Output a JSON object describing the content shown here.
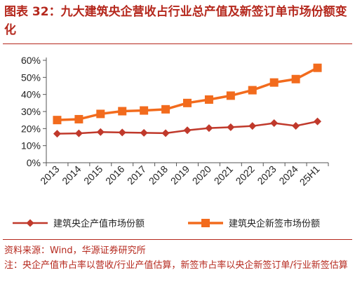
{
  "title": "图表 32：九大建筑央企营收占行业总产值及新签订单市场份额变化",
  "source": "资料来源：Wind，华源证券研究所",
  "note": "注：央企产值市占率以营收/行业产值估算，新签市占率以央企新签订单/行业新签估算",
  "chart_data": {
    "type": "line",
    "categories": [
      "2013",
      "2014",
      "2015",
      "2016",
      "2017",
      "2018",
      "2019",
      "2020",
      "2021",
      "2022",
      "2023",
      "2024",
      "25H1"
    ],
    "series": [
      {
        "name": "建筑央企产值市场份额",
        "color": "#c0392b",
        "marker": "diamond",
        "values": [
          17.0,
          17.2,
          18.0,
          17.7,
          17.5,
          17.3,
          19.0,
          20.3,
          20.8,
          21.5,
          23.2,
          21.6,
          24.2
        ]
      },
      {
        "name": "建筑央企新签市场份额",
        "color": "#f26b1d",
        "marker": "square",
        "values": [
          25.0,
          25.5,
          28.6,
          30.2,
          30.6,
          31.3,
          35.0,
          37.0,
          39.3,
          42.5,
          47.0,
          49.0,
          55.6
        ]
      }
    ],
    "ylim": [
      0,
      60
    ],
    "yticks": [
      "0%",
      "10%",
      "20%",
      "30%",
      "40%",
      "50%",
      "60%"
    ],
    "y_format": "percent",
    "grid": false,
    "legend": "bottom"
  }
}
